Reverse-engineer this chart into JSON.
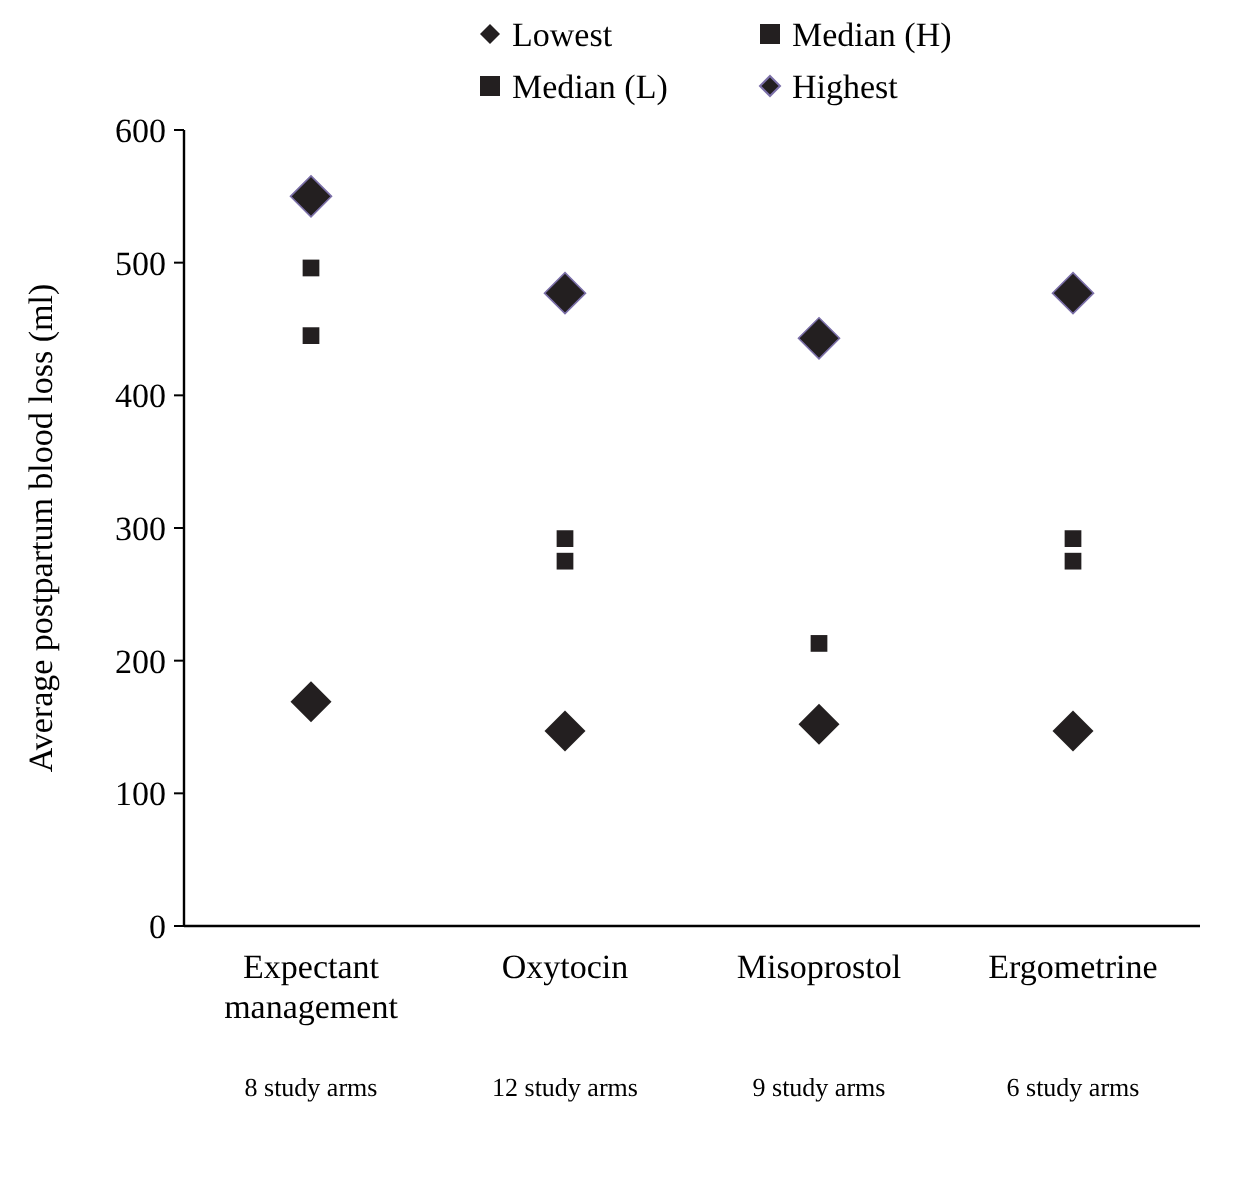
{
  "chart_data": {
    "type": "scatter",
    "ylabel": "Average postpartum blood loss (ml)",
    "categories": [
      "Expectant management",
      "Oxytocin",
      "Misoprostol",
      "Ergometrine"
    ],
    "series": [
      {
        "name": "Lowest",
        "color": "#231f20",
        "marker": "diamond",
        "values": [
          169,
          147,
          152,
          147
        ]
      },
      {
        "name": "Median (H)",
        "color": "#231f20",
        "marker": "square",
        "values": [
          496,
          292,
          213,
          292
        ]
      },
      {
        "name": "Median (L)",
        "color": "#231f20",
        "marker": "square",
        "values": [
          445,
          275,
          null,
          275
        ]
      },
      {
        "name": "Highest",
        "color": "#231f20",
        "marker": "diamond",
        "values": [
          550,
          477,
          443,
          477
        ]
      }
    ],
    "ylim": [
      0,
      600
    ],
    "yticks": [
      0,
      100,
      200,
      300,
      400,
      500,
      600
    ],
    "legend": "top",
    "grid": false,
    "annotations": [
      "8 study arms",
      "12 study arms",
      "9 study arms",
      "6 study arms"
    ]
  }
}
